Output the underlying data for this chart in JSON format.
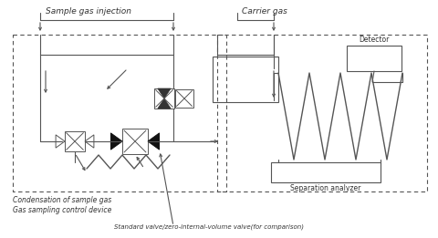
{
  "bg_color": "#ffffff",
  "line_color": "#555555",
  "text_color": "#333333",
  "labels": {
    "sample_gas": "Sample gas injection",
    "carrier_gas": "Carrier gas",
    "condensation": "Condensation of sample gas",
    "gas_sampling": "Gas sampling control device",
    "separation": "Separation analyzer",
    "detector": "Detector",
    "standard_valve": "Standard valve/zero-internal-volume valve(for comparison)"
  }
}
